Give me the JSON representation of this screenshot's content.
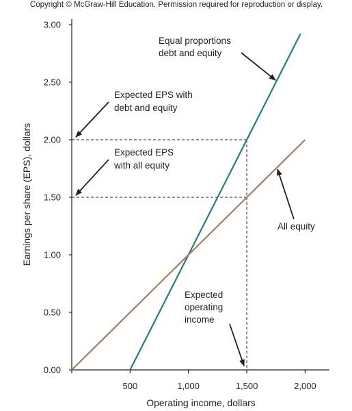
{
  "copyright": "Copyright © McGraw-Hill Education. Permission required for reproduction or display.",
  "chart_data": {
    "type": "line",
    "xlabel": "Operating income, dollars",
    "ylabel": "Earnings per share (EPS), dollars",
    "xlim": [
      0,
      2200
    ],
    "ylim": [
      0,
      3.0
    ],
    "x_ticks": [
      500,
      1000,
      1500,
      2000
    ],
    "x_tick_labels": [
      "500",
      "1,000",
      "1,500",
      "2,000"
    ],
    "y_ticks": [
      0,
      0.5,
      1.0,
      1.5,
      2.0,
      2.5,
      3.0
    ],
    "y_tick_labels": [
      "0.00",
      "0.50",
      "1.00",
      "1.50",
      "2.00",
      "2.50",
      "3.00"
    ],
    "grid": false,
    "series": [
      {
        "name": "Equal proportions debt and equity",
        "color": "#1f7f7f",
        "x": [
          500,
          1000,
          1500,
          1960
        ],
        "y": [
          0.0,
          1.0,
          2.0,
          2.92
        ]
      },
      {
        "name": "All equity",
        "color": "#a97a56",
        "x": [
          0,
          1000,
          1500,
          2000
        ],
        "y": [
          0.0,
          1.0,
          1.5,
          2.0
        ]
      }
    ],
    "reference_lines": [
      {
        "type": "horizontal",
        "y": 2.0,
        "x_to": 1500,
        "style": "dashed"
      },
      {
        "type": "horizontal",
        "y": 1.5,
        "x_to": 1500,
        "style": "dashed"
      },
      {
        "type": "vertical",
        "x": 1500,
        "y_to": 2.0,
        "style": "dashed"
      }
    ],
    "annotations": [
      {
        "id": "equal",
        "lines": [
          "Equal proportions",
          "debt and equity"
        ]
      },
      {
        "id": "eps_debt",
        "lines": [
          "Expected EPS with",
          "debt and equity"
        ]
      },
      {
        "id": "eps_equity",
        "lines": [
          "Expected EPS",
          "with all equity"
        ]
      },
      {
        "id": "all_equity",
        "lines": [
          "All equity"
        ]
      },
      {
        "id": "op_income",
        "lines": [
          "Expected",
          "operating",
          "income"
        ]
      }
    ],
    "line_colors": {
      "teal": "#1f7f7f",
      "brown": "#a97a56",
      "axis": "#231f20"
    }
  }
}
